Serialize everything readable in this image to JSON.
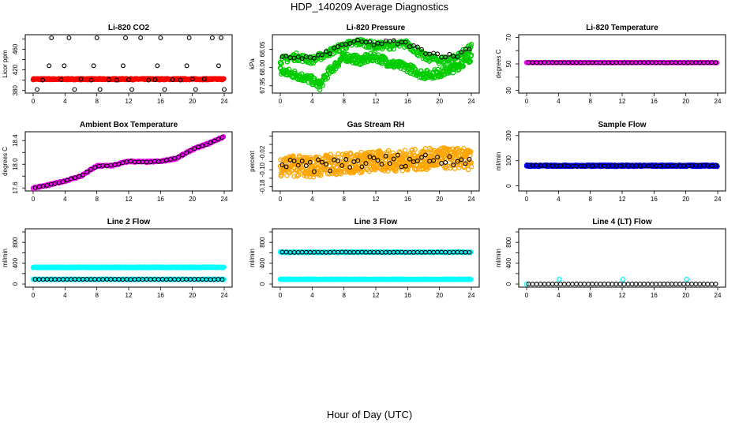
{
  "figure": {
    "title": "HDP_140209  Average Diagnostics",
    "xlabel": "Hour of Day (UTC)"
  },
  "colors": {
    "co2": "#ff0000",
    "pressure": "#00cc00",
    "temperature": "#ff00ff",
    "ambient": "#ff00ff",
    "rh": "#ffa500",
    "sample": "#0000ff",
    "line": "#00ffff",
    "average": "#000000"
  },
  "chart_data": [
    {
      "type": "scatter",
      "title": "Li-820 CO2",
      "ylabel": "Licor ppm",
      "xlim": [
        0,
        24
      ],
      "xticks": [
        0,
        4,
        8,
        12,
        16,
        20,
        24
      ],
      "xtick_labels": [
        "0",
        "4",
        "8",
        "12",
        "16",
        "20",
        "24"
      ],
      "ylim": [
        375,
        488
      ],
      "yticks": [
        380,
        400,
        420,
        440,
        460,
        480
      ],
      "ytick_labels": [
        "380",
        "",
        "420",
        "",
        "460",
        ""
      ],
      "series": [
        {
          "name": "raw",
          "color_key": "co2",
          "mode": "band",
          "center": 402,
          "spread": 1.2,
          "step": 0.05
        },
        {
          "name": "average",
          "color_key": "average",
          "mode": "points",
          "x": [
            0.5,
            1.2,
            2.0,
            2.3,
            3.5,
            3.9,
            4.5,
            5.2,
            6.0,
            7.3,
            7.6,
            8.0,
            8.4,
            9.5,
            10.5,
            11.3,
            11.6,
            12.0,
            12.4,
            13.5,
            14.5,
            15.3,
            15.6,
            16.0,
            16.5,
            17.5,
            18.5,
            19.3,
            19.6,
            20.0,
            20.4,
            21.5,
            22.5,
            23.3,
            23.6,
            24.0
          ],
          "y": [
            382,
            400,
            428,
            482,
            401,
            428,
            482,
            382,
            402,
            400,
            428,
            482,
            382,
            401,
            400,
            428,
            482,
            401,
            382,
            482,
            400,
            401,
            428,
            482,
            382,
            401,
            400,
            428,
            482,
            402,
            382,
            402,
            482,
            428,
            482,
            382
          ]
        }
      ]
    },
    {
      "type": "scatter",
      "title": "Li-820 Pressure",
      "ylabel": "kPa",
      "xlim": [
        0,
        24
      ],
      "xticks": [
        0,
        4,
        8,
        12,
        16,
        20,
        24
      ],
      "xtick_labels": [
        "0",
        "4",
        "8",
        "12",
        "16",
        "20",
        "24"
      ],
      "ylim": [
        67.93,
        68.09
      ],
      "yticks": [
        67.95,
        68.0,
        68.05
      ],
      "ytick_labels": [
        "67.95",
        "68.00",
        "68.05"
      ],
      "series": [
        {
          "name": "raw-low",
          "color_key": "pressure",
          "mode": "walk",
          "knots_x": [
            0,
            2,
            4,
            5,
            6,
            8,
            10,
            12,
            14,
            16,
            18,
            20,
            22,
            24
          ],
          "knots_y": [
            67.99,
            67.98,
            67.965,
            67.95,
            67.985,
            68.03,
            68.02,
            68.03,
            68.01,
            68.0,
            67.98,
            67.985,
            68.0,
            68.03
          ],
          "jitter": 0.012,
          "step": 0.06
        },
        {
          "name": "raw-high",
          "color_key": "pressure",
          "mode": "walk",
          "knots_x": [
            0,
            2,
            4,
            6,
            8,
            10,
            12,
            14,
            16,
            18,
            20,
            22,
            24
          ],
          "knots_y": [
            68.02,
            68.03,
            68.02,
            68.04,
            68.06,
            68.07,
            68.06,
            68.06,
            68.065,
            68.03,
            68.02,
            68.025,
            68.055
          ],
          "jitter": 0.01,
          "step": 0.08
        },
        {
          "name": "average",
          "color_key": "average",
          "mode": "walk",
          "knots_x": [
            0,
            2,
            4,
            6,
            8,
            10,
            12,
            14,
            16,
            18,
            20,
            22,
            24
          ],
          "knots_y": [
            68.025,
            68.03,
            68.025,
            68.04,
            68.065,
            68.07,
            68.065,
            68.07,
            68.065,
            68.045,
            68.035,
            68.03,
            68.06
          ],
          "jitter": 0.006,
          "step": 0.5
        }
      ]
    },
    {
      "type": "scatter",
      "title": "Li-820 Temperature",
      "ylabel": "degrees C",
      "xlim": [
        0,
        24
      ],
      "xticks": [
        0,
        4,
        8,
        12,
        16,
        20,
        24
      ],
      "xtick_labels": [
        "0",
        "4",
        "8",
        "12",
        "16",
        "20",
        "24"
      ],
      "ylim": [
        28,
        72
      ],
      "yticks": [
        30,
        40,
        50,
        60,
        70
      ],
      "ytick_labels": [
        "30",
        "",
        "50",
        "",
        "70"
      ],
      "series": [
        {
          "name": "raw",
          "color_key": "temperature",
          "mode": "band",
          "center": 51,
          "spread": 0.15,
          "step": 0.1
        },
        {
          "name": "average",
          "color_key": "average",
          "mode": "band",
          "center": 51,
          "spread": 0.05,
          "step": 0.5
        }
      ]
    },
    {
      "type": "scatter",
      "title": "Ambient Box Temperature",
      "ylabel": "degrees C",
      "xlim": [
        0,
        24
      ],
      "xticks": [
        0,
        4,
        8,
        12,
        16,
        20,
        24
      ],
      "xtick_labels": [
        "0",
        "4",
        "8",
        "12",
        "16",
        "20",
        "24"
      ],
      "ylim": [
        17.55,
        18.55
      ],
      "yticks": [
        17.6,
        17.8,
        18.0,
        18.2,
        18.4
      ],
      "ytick_labels": [
        "17.6",
        "",
        "18.0",
        "",
        "18.4"
      ],
      "series": [
        {
          "name": "raw",
          "color_key": "ambient",
          "mode": "walk",
          "knots_x": [
            0,
            2,
            4,
            6,
            8,
            10,
            12,
            14,
            16,
            18,
            20,
            22,
            24
          ],
          "knots_y": [
            17.6,
            17.65,
            17.72,
            17.8,
            17.97,
            17.98,
            18.05,
            18.04,
            18.05,
            18.1,
            18.25,
            18.35,
            18.47
          ],
          "jitter": 0.012,
          "step": 0.1
        },
        {
          "name": "average",
          "color_key": "average",
          "mode": "walk",
          "knots_x": [
            0,
            2,
            4,
            6,
            8,
            10,
            12,
            14,
            16,
            18,
            20,
            22,
            24
          ],
          "knots_y": [
            17.6,
            17.65,
            17.72,
            17.8,
            17.97,
            17.98,
            18.05,
            18.04,
            18.05,
            18.1,
            18.25,
            18.35,
            18.47
          ],
          "jitter": 0.006,
          "step": 0.5
        }
      ]
    },
    {
      "type": "scatter",
      "title": "Gas Stream RH",
      "ylabel": "percent",
      "xlim": [
        0,
        24
      ],
      "xticks": [
        0,
        4,
        8,
        12,
        16,
        20,
        24
      ],
      "xtick_labels": [
        "0",
        "4",
        "8",
        "12",
        "16",
        "20",
        "24"
      ],
      "ylim": [
        -0.2,
        0.08
      ],
      "yticks": [
        -0.18,
        -0.14,
        -0.1,
        -0.06,
        -0.02,
        0.02,
        0.06
      ],
      "ytick_labels": [
        "-0.18",
        "",
        "-0.10",
        "",
        "-0.02",
        "",
        ""
      ],
      "series": [
        {
          "name": "raw",
          "color_key": "rh",
          "mode": "walk",
          "knots_x": [
            0,
            4,
            8,
            12,
            16,
            20,
            24
          ],
          "knots_y": [
            -0.08,
            -0.085,
            -0.07,
            -0.06,
            -0.055,
            -0.045,
            -0.05
          ],
          "jitter": 0.05,
          "step": 0.04
        },
        {
          "name": "average",
          "color_key": "average",
          "mode": "walk",
          "knots_x": [
            0,
            4,
            8,
            12,
            16,
            20,
            24
          ],
          "knots_y": [
            -0.08,
            -0.085,
            -0.07,
            -0.06,
            -0.055,
            -0.045,
            -0.05
          ],
          "jitter": 0.03,
          "step": 0.5
        }
      ]
    },
    {
      "type": "scatter",
      "title": "Sample Flow",
      "ylabel": "ml/min",
      "xlim": [
        0,
        24
      ],
      "xticks": [
        0,
        4,
        8,
        12,
        16,
        20,
        24
      ],
      "xtick_labels": [
        "0",
        "4",
        "8",
        "12",
        "16",
        "20",
        "24"
      ],
      "ylim": [
        -20,
        215
      ],
      "yticks": [
        0,
        100,
        200
      ],
      "ytick_labels": [
        "0",
        "100",
        "200"
      ],
      "series": [
        {
          "name": "raw",
          "color_key": "sample",
          "mode": "band",
          "center": 80,
          "spread": 3,
          "step": 0.05
        },
        {
          "name": "average",
          "color_key": "average",
          "mode": "band",
          "center": 80,
          "spread": 1.5,
          "step": 0.5
        }
      ]
    },
    {
      "type": "scatter",
      "title": "Line 2 Flow",
      "ylabel": "ml/min",
      "xlim": [
        0,
        24
      ],
      "xticks": [
        0,
        4,
        8,
        12,
        16,
        20,
        24
      ],
      "xtick_labels": [
        "0",
        "4",
        "8",
        "12",
        "16",
        "20",
        "24"
      ],
      "ylim": [
        -60,
        1060
      ],
      "yticks": [
        0,
        200,
        400,
        600,
        800,
        1000
      ],
      "ytick_labels": [
        "0",
        "",
        "400",
        "",
        "800",
        ""
      ],
      "series": [
        {
          "name": "raw-high",
          "color_key": "line",
          "mode": "band",
          "center": 320,
          "spread": 6,
          "step": 0.05
        },
        {
          "name": "raw-low",
          "color_key": "line",
          "mode": "band",
          "center": 90,
          "spread": 3,
          "step": 0.05
        },
        {
          "name": "average",
          "color_key": "average",
          "mode": "band",
          "center": 90,
          "spread": 2,
          "step": 0.5
        }
      ]
    },
    {
      "type": "scatter",
      "title": "Line 3 Flow",
      "ylabel": "ml/min",
      "xlim": [
        0,
        24
      ],
      "xticks": [
        0,
        4,
        8,
        12,
        16,
        20,
        24
      ],
      "xtick_labels": [
        "0",
        "4",
        "8",
        "12",
        "16",
        "20",
        "24"
      ],
      "ylim": [
        -60,
        1060
      ],
      "yticks": [
        0,
        200,
        400,
        600,
        800,
        1000
      ],
      "ytick_labels": [
        "0",
        "",
        "400",
        "",
        "800",
        ""
      ],
      "series": [
        {
          "name": "raw-high",
          "color_key": "line",
          "mode": "band",
          "center": 610,
          "spread": 6,
          "step": 0.05
        },
        {
          "name": "raw-low",
          "color_key": "line",
          "mode": "band",
          "center": 90,
          "spread": 3,
          "step": 0.05
        },
        {
          "name": "average",
          "color_key": "average",
          "mode": "band",
          "center": 610,
          "spread": 2,
          "step": 0.5
        }
      ]
    },
    {
      "type": "scatter",
      "title": "Line 4 (LT) Flow",
      "ylabel": "ml/min",
      "xlim": [
        0,
        24
      ],
      "xticks": [
        0,
        4,
        8,
        12,
        16,
        20,
        24
      ],
      "xtick_labels": [
        "0",
        "4",
        "8",
        "12",
        "16",
        "20",
        "24"
      ],
      "ylim": [
        -60,
        1060
      ],
      "yticks": [
        0,
        200,
        400,
        600,
        800,
        1000
      ],
      "ytick_labels": [
        "0",
        "",
        "400",
        "",
        "800",
        ""
      ],
      "series": [
        {
          "name": "raw",
          "color_key": "line",
          "mode": "points",
          "x": [
            0,
            4.1,
            12.1,
            20.1
          ],
          "y": [
            0,
            90,
            90,
            90
          ]
        },
        {
          "name": "average",
          "color_key": "average",
          "mode": "band",
          "center": 0,
          "spread": 1,
          "step": 0.5
        }
      ]
    }
  ]
}
